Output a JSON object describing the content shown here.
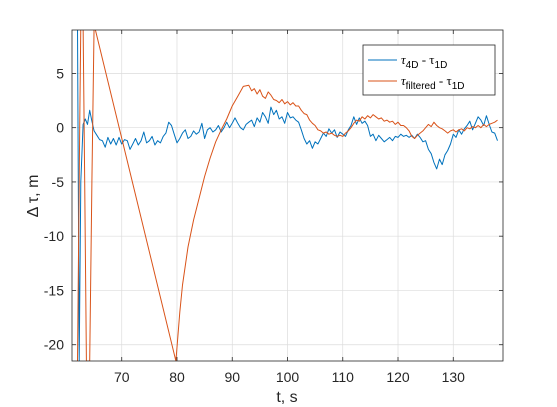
{
  "chart_data": {
    "type": "line",
    "xlabel": "t, s",
    "ylabel": "Δ τ, m",
    "xlim": [
      61,
      139
    ],
    "ylim": [
      -21.5,
      9
    ],
    "xticks": [
      70,
      80,
      90,
      100,
      110,
      120,
      130
    ],
    "yticks": [
      5,
      0,
      -5,
      -10,
      -15,
      -20
    ],
    "grid": true,
    "legend_position": "top-right",
    "series": [
      {
        "name": "τ4D - τ1D",
        "legend_main": "τ",
        "legend_sub1": "4D",
        "legend_mid": " - τ",
        "legend_sub2": "1D",
        "color": "#0072BD",
        "points": [
          [
            62.0,
            9.5
          ],
          [
            62.3,
            -21.5
          ],
          [
            62.6,
            -5
          ],
          [
            63.0,
            0.3
          ],
          [
            63.4,
            0.8
          ],
          [
            63.8,
            0.3
          ],
          [
            64.2,
            1.6
          ],
          [
            64.6,
            0.6
          ],
          [
            65.0,
            -0.3
          ],
          [
            65.5,
            -0.7
          ],
          [
            66.0,
            -1.1
          ],
          [
            66.5,
            -1.2
          ],
          [
            67.0,
            -1.8
          ],
          [
            67.5,
            -0.9
          ],
          [
            68.0,
            -1.5
          ],
          [
            68.5,
            -1.0
          ],
          [
            69.0,
            -1.6
          ],
          [
            69.5,
            -0.9
          ],
          [
            70.0,
            -1.5
          ],
          [
            70.5,
            -1.1
          ],
          [
            71.0,
            -1.2
          ],
          [
            71.5,
            -2.0
          ],
          [
            72.0,
            -1.5
          ],
          [
            72.5,
            -1.0
          ],
          [
            73.0,
            -1.6
          ],
          [
            73.5,
            -1.2
          ],
          [
            74.0,
            -0.4
          ],
          [
            74.5,
            -1.4
          ],
          [
            75.0,
            -1.2
          ],
          [
            75.5,
            -0.8
          ],
          [
            76.0,
            -1.6
          ],
          [
            76.5,
            -1.2
          ],
          [
            77.0,
            -1.4
          ],
          [
            77.5,
            -0.8
          ],
          [
            78.0,
            -0.5
          ],
          [
            78.5,
            0.5
          ],
          [
            79.0,
            0.2
          ],
          [
            79.5,
            -0.6
          ],
          [
            80.0,
            -1.4
          ],
          [
            80.5,
            -1.0
          ],
          [
            81.0,
            -0.5
          ],
          [
            81.5,
            -0.2
          ],
          [
            82.0,
            -1.0
          ],
          [
            82.5,
            -0.8
          ],
          [
            83.0,
            -0.3
          ],
          [
            83.5,
            -0.6
          ],
          [
            84.0,
            -0.4
          ],
          [
            84.5,
            0.4
          ],
          [
            85.0,
            -1.0
          ],
          [
            85.5,
            -0.2
          ],
          [
            86.0,
            0.0
          ],
          [
            86.5,
            -0.4
          ],
          [
            87.0,
            -0.2
          ],
          [
            87.5,
            0.2
          ],
          [
            88.0,
            -0.4
          ],
          [
            88.5,
            0.0
          ],
          [
            89.0,
            0.5
          ],
          [
            89.5,
            0.0
          ],
          [
            90.0,
            0.4
          ],
          [
            90.5,
            0.9
          ],
          [
            91.0,
            0.4
          ],
          [
            91.5,
            0.0
          ],
          [
            92.0,
            -0.2
          ],
          [
            92.5,
            0.3
          ],
          [
            93.0,
            0.5
          ],
          [
            93.5,
            0.7
          ],
          [
            94.0,
            0.1
          ],
          [
            94.5,
            0.9
          ],
          [
            95.0,
            0.5
          ],
          [
            95.5,
            1.4
          ],
          [
            96.0,
            1.0
          ],
          [
            96.5,
            0.4
          ],
          [
            97.0,
            1.9
          ],
          [
            97.5,
            1.2
          ],
          [
            98.0,
            1.6
          ],
          [
            98.5,
            0.8
          ],
          [
            99.0,
            1.0
          ],
          [
            99.5,
            0.4
          ],
          [
            100.0,
            1.4
          ],
          [
            100.5,
            0.9
          ],
          [
            101.0,
            1.0
          ],
          [
            101.5,
            0.7
          ],
          [
            102.0,
            0.5
          ],
          [
            102.5,
            -0.2
          ],
          [
            103.0,
            -1.0
          ],
          [
            103.5,
            -1.5
          ],
          [
            104.0,
            -1.2
          ],
          [
            104.5,
            -1.9
          ],
          [
            105.0,
            -1.3
          ],
          [
            105.5,
            -1.5
          ],
          [
            106.0,
            -1.0
          ],
          [
            106.5,
            -0.5
          ],
          [
            107.0,
            -0.8
          ],
          [
            107.5,
            -0.1
          ],
          [
            108.0,
            -0.5
          ],
          [
            108.5,
            -0.2
          ],
          [
            109.0,
            -0.9
          ],
          [
            109.5,
            -0.4
          ],
          [
            110.0,
            -0.6
          ],
          [
            110.5,
            -0.8
          ],
          [
            111.0,
            -0.2
          ],
          [
            111.5,
            0.2
          ],
          [
            112.0,
            1.0
          ],
          [
            112.5,
            0.3
          ],
          [
            113.0,
            0.9
          ],
          [
            113.5,
            0.4
          ],
          [
            114.0,
            0.6
          ],
          [
            114.5,
            0.2
          ],
          [
            115.0,
            -0.8
          ],
          [
            115.5,
            -0.6
          ],
          [
            116.0,
            -1.2
          ],
          [
            116.5,
            -0.7
          ],
          [
            117.0,
            -1.0
          ],
          [
            117.5,
            -1.3
          ],
          [
            118.0,
            -1.1
          ],
          [
            118.5,
            -0.9
          ],
          [
            119.0,
            -1.2
          ],
          [
            119.5,
            -0.8
          ],
          [
            120.0,
            -0.9
          ],
          [
            120.5,
            -0.6
          ],
          [
            121.0,
            -0.8
          ],
          [
            121.5,
            -0.7
          ],
          [
            122.0,
            -0.9
          ],
          [
            122.5,
            -0.7
          ],
          [
            123.0,
            -1.0
          ],
          [
            123.5,
            -0.6
          ],
          [
            124.0,
            -0.9
          ],
          [
            124.5,
            -1.3
          ],
          [
            125.0,
            -1.2
          ],
          [
            125.5,
            -2.0
          ],
          [
            126.0,
            -2.4
          ],
          [
            126.5,
            -3.2
          ],
          [
            127.0,
            -3.8
          ],
          [
            127.5,
            -2.9
          ],
          [
            128.0,
            -3.4
          ],
          [
            128.5,
            -2.5
          ],
          [
            129.0,
            -2.1
          ],
          [
            129.5,
            -1.5
          ],
          [
            130.0,
            -0.6
          ],
          [
            130.5,
            -0.9
          ],
          [
            131.0,
            -0.2
          ],
          [
            131.5,
            -0.6
          ],
          [
            132.0,
            -0.1
          ],
          [
            132.5,
            0.2
          ],
          [
            133.0,
            0.6
          ],
          [
            133.5,
            -0.2
          ],
          [
            134.0,
            0.4
          ],
          [
            134.5,
            1.0
          ],
          [
            135.0,
            0.7
          ],
          [
            135.5,
            0.2
          ],
          [
            136.0,
            1.1
          ],
          [
            136.5,
            0.3
          ],
          [
            137.0,
            -0.4
          ],
          [
            137.5,
            -0.5
          ],
          [
            138.0,
            -1.2
          ]
        ]
      },
      {
        "name": "τfiltered - τ1D",
        "legend_main": "τ",
        "legend_sub1": "filtered",
        "legend_mid": " - τ",
        "legend_sub2": "1D",
        "color": "#D95319",
        "points": [
          [
            62.0,
            -21.5
          ],
          [
            62.4,
            0.0
          ],
          [
            62.6,
            9.5
          ],
          [
            63.0,
            9.5
          ],
          [
            63.3,
            -5
          ],
          [
            63.6,
            -21.5
          ],
          [
            64.2,
            -21.5
          ],
          [
            64.6,
            -5
          ],
          [
            65.0,
            9.5
          ],
          [
            79.8,
            -21.5
          ],
          [
            80.5,
            -17.0
          ],
          [
            81.0,
            -14.5
          ],
          [
            82.0,
            -11.0
          ],
          [
            83.0,
            -8.5
          ],
          [
            84.0,
            -6.5
          ],
          [
            85.0,
            -4.5
          ],
          [
            86.0,
            -2.8
          ],
          [
            87.0,
            -1.3
          ],
          [
            88.0,
            -0.2
          ],
          [
            89.0,
            0.8
          ],
          [
            90.0,
            2.0
          ],
          [
            91.0,
            2.9
          ],
          [
            92.0,
            3.8
          ],
          [
            93.0,
            3.9
          ],
          [
            93.5,
            3.4
          ],
          [
            94.0,
            3.6
          ],
          [
            94.5,
            3.1
          ],
          [
            95.0,
            3.5
          ],
          [
            95.5,
            2.9
          ],
          [
            96.0,
            2.7
          ],
          [
            96.5,
            3.3
          ],
          [
            97.0,
            3.0
          ],
          [
            97.5,
            2.6
          ],
          [
            98.0,
            2.5
          ],
          [
            98.5,
            2.3
          ],
          [
            99.0,
            2.6
          ],
          [
            99.5,
            2.2
          ],
          [
            100.0,
            2.4
          ],
          [
            100.5,
            2.1
          ],
          [
            101.0,
            2.3
          ],
          [
            101.5,
            2.0
          ],
          [
            102.0,
            2.0
          ],
          [
            102.5,
            1.6
          ],
          [
            103.0,
            1.3
          ],
          [
            103.5,
            1.2
          ],
          [
            104.0,
            0.7
          ],
          [
            104.5,
            0.4
          ],
          [
            105.0,
            0.2
          ],
          [
            105.5,
            -0.2
          ],
          [
            106.0,
            -0.3
          ],
          [
            106.5,
            -0.5
          ],
          [
            107.0,
            -0.4
          ],
          [
            107.5,
            -0.6
          ],
          [
            108.0,
            -0.5
          ],
          [
            108.5,
            -0.7
          ],
          [
            109.0,
            -0.8
          ],
          [
            109.5,
            -0.7
          ],
          [
            110.0,
            -0.8
          ],
          [
            110.5,
            -0.5
          ],
          [
            111.0,
            -0.3
          ],
          [
            111.5,
            0.0
          ],
          [
            112.0,
            0.4
          ],
          [
            112.5,
            0.7
          ],
          [
            113.0,
            0.6
          ],
          [
            113.5,
            1.0
          ],
          [
            114.0,
            0.8
          ],
          [
            114.5,
            1.1
          ],
          [
            115.0,
            0.9
          ],
          [
            115.5,
            1.2
          ],
          [
            116.0,
            1.0
          ],
          [
            116.5,
            0.8
          ],
          [
            117.0,
            0.9
          ],
          [
            117.5,
            0.6
          ],
          [
            118.0,
            0.7
          ],
          [
            118.5,
            0.5
          ],
          [
            119.0,
            0.6
          ],
          [
            119.5,
            0.3
          ],
          [
            120.0,
            0.5
          ],
          [
            120.5,
            0.2
          ],
          [
            121.0,
            0.2
          ],
          [
            121.5,
            0.0
          ],
          [
            122.0,
            -0.3
          ],
          [
            122.5,
            -0.8
          ],
          [
            123.0,
            -1.0
          ],
          [
            123.5,
            -0.7
          ],
          [
            124.0,
            -0.5
          ],
          [
            124.5,
            -0.3
          ],
          [
            125.0,
            0.0
          ],
          [
            125.5,
            0.3
          ],
          [
            126.0,
            0.1
          ],
          [
            126.5,
            0.5
          ],
          [
            127.0,
            0.2
          ],
          [
            127.5,
            0.0
          ],
          [
            128.0,
            -0.1
          ],
          [
            128.5,
            -0.3
          ],
          [
            129.0,
            -0.5
          ],
          [
            129.5,
            -0.3
          ],
          [
            130.0,
            -0.2
          ],
          [
            130.5,
            -0.4
          ],
          [
            131.0,
            -0.2
          ],
          [
            131.5,
            -0.1
          ],
          [
            132.0,
            -0.3
          ],
          [
            132.5,
            0.0
          ],
          [
            133.0,
            -0.1
          ],
          [
            133.5,
            0.1
          ],
          [
            134.0,
            0.0
          ],
          [
            134.5,
            0.2
          ],
          [
            135.0,
            0.0
          ],
          [
            135.5,
            0.3
          ],
          [
            136.0,
            0.1
          ],
          [
            136.5,
            0.3
          ],
          [
            137.0,
            0.4
          ],
          [
            137.5,
            0.5
          ],
          [
            138.0,
            0.7
          ]
        ]
      }
    ]
  }
}
